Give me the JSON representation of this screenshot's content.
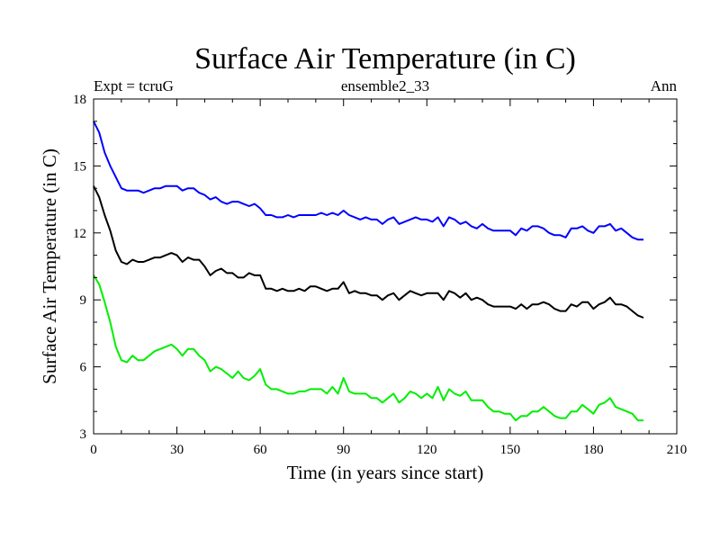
{
  "chart_data": {
    "type": "line",
    "title": "Surface Air Temperature (in C)",
    "subtitle_left": "Expt = tcruG",
    "subtitle_center": "ensemble2_33",
    "subtitle_right": "Ann",
    "xlabel": "Time (in years since start)",
    "ylabel": "Surface Air Temperature (in C)",
    "xlim": [
      0,
      210
    ],
    "ylim": [
      3,
      18
    ],
    "xticks": [
      0,
      30,
      60,
      90,
      120,
      150,
      180,
      210
    ],
    "yticks": [
      3,
      6,
      9,
      12,
      15,
      18
    ],
    "grid": false,
    "series": [
      {
        "color": "#0000ff",
        "x": [
          0,
          2,
          4,
          6,
          8,
          10,
          12,
          14,
          16,
          18,
          20,
          22,
          24,
          26,
          28,
          30,
          32,
          34,
          36,
          38,
          40,
          42,
          44,
          46,
          48,
          50,
          52,
          54,
          56,
          58,
          60,
          62,
          64,
          66,
          68,
          70,
          72,
          74,
          76,
          78,
          80,
          82,
          84,
          86,
          88,
          90,
          92,
          94,
          96,
          98,
          100,
          102,
          104,
          106,
          108,
          110,
          112,
          114,
          116,
          118,
          120,
          122,
          124,
          126,
          128,
          130,
          132,
          134,
          136,
          138,
          140,
          142,
          144,
          146,
          148,
          150,
          152,
          154,
          156,
          158,
          160,
          162,
          164,
          166,
          168,
          170,
          172,
          174,
          176,
          178,
          180,
          182,
          184,
          186,
          188,
          190,
          192,
          194,
          196,
          198
        ],
        "values": [
          17.0,
          16.5,
          15.6,
          15.0,
          14.5,
          14.0,
          13.9,
          13.9,
          13.9,
          13.8,
          13.9,
          14.0,
          14.0,
          14.1,
          14.1,
          14.1,
          13.9,
          14.0,
          14.0,
          13.8,
          13.7,
          13.5,
          13.6,
          13.4,
          13.3,
          13.4,
          13.4,
          13.3,
          13.2,
          13.3,
          13.1,
          12.8,
          12.8,
          12.7,
          12.7,
          12.8,
          12.7,
          12.8,
          12.8,
          12.8,
          12.8,
          12.9,
          12.8,
          12.9,
          12.8,
          13.0,
          12.8,
          12.7,
          12.6,
          12.7,
          12.6,
          12.6,
          12.4,
          12.6,
          12.7,
          12.4,
          12.5,
          12.6,
          12.7,
          12.6,
          12.6,
          12.5,
          12.7,
          12.3,
          12.7,
          12.6,
          12.4,
          12.5,
          12.3,
          12.2,
          12.4,
          12.2,
          12.1,
          12.1,
          12.1,
          12.1,
          11.9,
          12.2,
          12.1,
          12.3,
          12.3,
          12.2,
          12.0,
          11.9,
          11.9,
          11.8,
          12.2,
          12.2,
          12.3,
          12.1,
          12.0,
          12.3,
          12.3,
          12.4,
          12.1,
          12.2,
          12.0,
          11.8,
          11.7,
          11.7
        ]
      },
      {
        "color": "#000000",
        "x": [
          0,
          2,
          4,
          6,
          8,
          10,
          12,
          14,
          16,
          18,
          20,
          22,
          24,
          26,
          28,
          30,
          32,
          34,
          36,
          38,
          40,
          42,
          44,
          46,
          48,
          50,
          52,
          54,
          56,
          58,
          60,
          62,
          64,
          66,
          68,
          70,
          72,
          74,
          76,
          78,
          80,
          82,
          84,
          86,
          88,
          90,
          92,
          94,
          96,
          98,
          100,
          102,
          104,
          106,
          108,
          110,
          112,
          114,
          116,
          118,
          120,
          122,
          124,
          126,
          128,
          130,
          132,
          134,
          136,
          138,
          140,
          142,
          144,
          146,
          148,
          150,
          152,
          154,
          156,
          158,
          160,
          162,
          164,
          166,
          168,
          170,
          172,
          174,
          176,
          178,
          180,
          182,
          184,
          186,
          188,
          190,
          192,
          194,
          196,
          198
        ],
        "values": [
          14.1,
          13.6,
          12.8,
          12.1,
          11.2,
          10.7,
          10.6,
          10.8,
          10.7,
          10.7,
          10.8,
          10.9,
          10.9,
          11.0,
          11.1,
          11.0,
          10.7,
          10.9,
          10.8,
          10.8,
          10.5,
          10.1,
          10.3,
          10.4,
          10.2,
          10.2,
          10.0,
          10.0,
          10.2,
          10.1,
          10.1,
          9.5,
          9.5,
          9.4,
          9.5,
          9.4,
          9.4,
          9.5,
          9.4,
          9.6,
          9.6,
          9.5,
          9.4,
          9.5,
          9.5,
          9.8,
          9.3,
          9.4,
          9.3,
          9.3,
          9.2,
          9.2,
          9.0,
          9.2,
          9.3,
          9.0,
          9.2,
          9.4,
          9.3,
          9.2,
          9.3,
          9.3,
          9.3,
          9.0,
          9.4,
          9.3,
          9.1,
          9.3,
          9.0,
          9.1,
          9.0,
          8.8,
          8.7,
          8.7,
          8.7,
          8.7,
          8.6,
          8.8,
          8.6,
          8.8,
          8.8,
          8.9,
          8.8,
          8.6,
          8.5,
          8.5,
          8.8,
          8.7,
          8.9,
          8.9,
          8.6,
          8.8,
          8.9,
          9.1,
          8.8,
          8.8,
          8.7,
          8.5,
          8.3,
          8.2
        ]
      },
      {
        "color": "#00ee00",
        "x": [
          0,
          2,
          4,
          6,
          8,
          10,
          12,
          14,
          16,
          18,
          20,
          22,
          24,
          26,
          28,
          30,
          32,
          34,
          36,
          38,
          40,
          42,
          44,
          46,
          48,
          50,
          52,
          54,
          56,
          58,
          60,
          62,
          64,
          66,
          68,
          70,
          72,
          74,
          76,
          78,
          80,
          82,
          84,
          86,
          88,
          90,
          92,
          94,
          96,
          98,
          100,
          102,
          104,
          106,
          108,
          110,
          112,
          114,
          116,
          118,
          120,
          122,
          124,
          126,
          128,
          130,
          132,
          134,
          136,
          138,
          140,
          142,
          144,
          146,
          148,
          150,
          152,
          154,
          156,
          158,
          160,
          162,
          164,
          166,
          168,
          170,
          172,
          174,
          176,
          178,
          180,
          182,
          184,
          186,
          188,
          190,
          192,
          194,
          196,
          198
        ],
        "values": [
          10.1,
          9.7,
          8.9,
          8.0,
          6.9,
          6.3,
          6.2,
          6.5,
          6.3,
          6.3,
          6.5,
          6.7,
          6.8,
          6.9,
          7.0,
          6.8,
          6.5,
          6.8,
          6.8,
          6.5,
          6.3,
          5.8,
          6.0,
          5.9,
          5.7,
          5.5,
          5.8,
          5.5,
          5.4,
          5.6,
          5.9,
          5.2,
          5.0,
          5.0,
          4.9,
          4.8,
          4.8,
          4.9,
          4.9,
          5.0,
          5.0,
          5.0,
          4.8,
          5.1,
          4.8,
          5.5,
          4.9,
          4.8,
          4.8,
          4.8,
          4.6,
          4.6,
          4.4,
          4.6,
          4.8,
          4.4,
          4.6,
          4.9,
          4.8,
          4.6,
          4.8,
          4.6,
          5.1,
          4.5,
          5.0,
          4.8,
          4.7,
          4.9,
          4.5,
          4.5,
          4.5,
          4.2,
          4.0,
          4.0,
          3.9,
          3.9,
          3.6,
          3.8,
          3.8,
          4.0,
          4.0,
          4.2,
          4.0,
          3.8,
          3.7,
          3.7,
          4.0,
          4.0,
          4.3,
          4.1,
          3.9,
          4.3,
          4.4,
          4.6,
          4.2,
          4.1,
          4.0,
          3.9,
          3.6,
          3.6
        ]
      }
    ]
  }
}
